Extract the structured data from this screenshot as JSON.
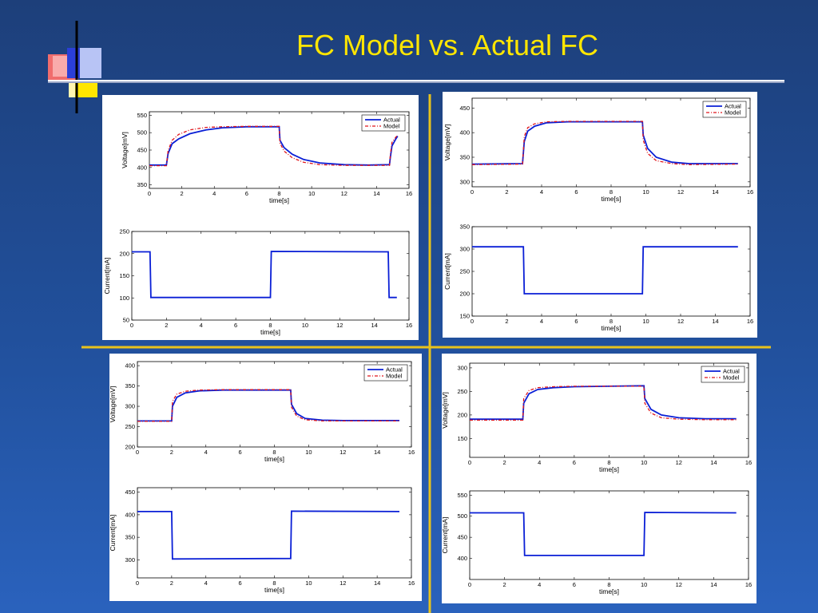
{
  "slide": {
    "title": "FC Model vs. Actual FC"
  },
  "colors": {
    "background": "#21509c",
    "title": "#ffe600",
    "divider_gold": "#e8c21c",
    "rule_white": "#ffffff",
    "actual": "#0a1fd6",
    "model": "#e0151b"
  },
  "legend": {
    "actual": "Actual",
    "model": "Model"
  },
  "chart_data": [
    {
      "id": "tl-voltage",
      "type": "line",
      "xlabel": "time[s]",
      "ylabel": "Voltage[mV]",
      "xlim": [
        0,
        16
      ],
      "ylim": [
        340,
        560
      ],
      "xticks": [
        0,
        2,
        4,
        6,
        8,
        10,
        12,
        14,
        16
      ],
      "yticks": [
        350,
        400,
        450,
        500,
        550
      ],
      "legend": "top-right",
      "grid": false,
      "series": [
        {
          "name": "Actual",
          "points": [
            [
              0,
              407
            ],
            [
              1.05,
              407
            ],
            [
              1.15,
              440
            ],
            [
              1.4,
              468
            ],
            [
              1.8,
              482
            ],
            [
              2.5,
              497
            ],
            [
              3.5,
              508
            ],
            [
              4.5,
              514
            ],
            [
              6,
              517
            ],
            [
              8,
              517
            ],
            [
              8.05,
              478
            ],
            [
              8.3,
              457
            ],
            [
              8.8,
              438
            ],
            [
              9.5,
              423
            ],
            [
              10.5,
              413
            ],
            [
              12,
              408
            ],
            [
              13.5,
              407
            ],
            [
              14.8,
              408
            ],
            [
              14.85,
              428
            ],
            [
              14.95,
              462
            ],
            [
              15.2,
              483
            ],
            [
              15.3,
              490
            ]
          ]
        },
        {
          "name": "Model",
          "points": [
            [
              0,
              405
            ],
            [
              1.05,
              405
            ],
            [
              1.15,
              448
            ],
            [
              1.4,
              478
            ],
            [
              1.8,
              495
            ],
            [
              2.5,
              508
            ],
            [
              3.5,
              515
            ],
            [
              4.5,
              517
            ],
            [
              6,
              518
            ],
            [
              8,
              518
            ],
            [
              8.05,
              470
            ],
            [
              8.3,
              447
            ],
            [
              8.8,
              428
            ],
            [
              9.5,
              415
            ],
            [
              10.5,
              408
            ],
            [
              12,
              406
            ],
            [
              13.5,
              406
            ],
            [
              14.8,
              406
            ],
            [
              14.85,
              435
            ],
            [
              14.95,
              472
            ],
            [
              15.2,
              488
            ],
            [
              15.3,
              492
            ]
          ]
        }
      ]
    },
    {
      "id": "tl-current",
      "type": "line",
      "xlabel": "time[s]",
      "ylabel": "Current[mA]",
      "xlim": [
        0,
        16
      ],
      "ylim": [
        50,
        250
      ],
      "xticks": [
        0,
        2,
        4,
        6,
        8,
        10,
        12,
        14,
        16
      ],
      "yticks": [
        50,
        100,
        150,
        200,
        250
      ],
      "grid": false,
      "series": [
        {
          "name": "Actual",
          "points": [
            [
              0,
              204
            ],
            [
              1.05,
              204
            ],
            [
              1.1,
              101
            ],
            [
              8,
              101
            ],
            [
              8.05,
              205
            ],
            [
              14.8,
              204
            ],
            [
              14.85,
              101
            ],
            [
              15.3,
              101
            ]
          ]
        }
      ]
    },
    {
      "id": "tr-voltage",
      "type": "line",
      "xlabel": "time[s]",
      "ylabel": "Voltage[mV]",
      "xlim": [
        0,
        16
      ],
      "ylim": [
        290,
        470
      ],
      "xticks": [
        0,
        2,
        4,
        6,
        8,
        10,
        12,
        14,
        16
      ],
      "yticks": [
        300,
        350,
        400,
        450
      ],
      "legend": "top-right",
      "grid": false,
      "series": [
        {
          "name": "Actual",
          "points": [
            [
              0,
              336
            ],
            [
              2.9,
              337
            ],
            [
              3,
              382
            ],
            [
              3.2,
              403
            ],
            [
              3.6,
              413
            ],
            [
              4.3,
              420
            ],
            [
              5.5,
              422
            ],
            [
              9.8,
              422
            ],
            [
              9.85,
              395
            ],
            [
              10.1,
              368
            ],
            [
              10.6,
              350
            ],
            [
              11.5,
              340
            ],
            [
              12.5,
              337
            ],
            [
              15.3,
              337
            ]
          ]
        },
        {
          "name": "Model",
          "points": [
            [
              0,
              335
            ],
            [
              2.9,
              336
            ],
            [
              3,
              392
            ],
            [
              3.2,
              410
            ],
            [
              3.6,
              418
            ],
            [
              4.3,
              422
            ],
            [
              5.5,
              423
            ],
            [
              9.8,
              423
            ],
            [
              9.85,
              385
            ],
            [
              10.1,
              358
            ],
            [
              10.6,
              343
            ],
            [
              11.5,
              337
            ],
            [
              12.5,
              335
            ],
            [
              15.3,
              336
            ]
          ]
        }
      ]
    },
    {
      "id": "tr-current",
      "type": "line",
      "xlabel": "time[s]",
      "ylabel": "Current[mA]",
      "xlim": [
        0,
        16
      ],
      "ylim": [
        150,
        350
      ],
      "xticks": [
        0,
        2,
        4,
        6,
        8,
        10,
        12,
        14,
        16
      ],
      "yticks": [
        150,
        200,
        250,
        300,
        350
      ],
      "grid": false,
      "series": [
        {
          "name": "Actual",
          "points": [
            [
              0,
              305
            ],
            [
              2.95,
              305
            ],
            [
              3,
              200
            ],
            [
              9.8,
              200
            ],
            [
              9.85,
              305
            ],
            [
              15.3,
              305
            ]
          ]
        }
      ]
    },
    {
      "id": "bl-voltage",
      "type": "line",
      "xlabel": "time[s]",
      "ylabel": "Voltage[mV]",
      "xlim": [
        0,
        16
      ],
      "ylim": [
        200,
        410
      ],
      "xticks": [
        0,
        2,
        4,
        6,
        8,
        10,
        12,
        14,
        16
      ],
      "yticks": [
        200,
        250,
        300,
        350,
        400
      ],
      "legend": "top-right",
      "grid": false,
      "series": [
        {
          "name": "Actual",
          "points": [
            [
              0,
              264
            ],
            [
              2,
              264
            ],
            [
              2.05,
              300
            ],
            [
              2.3,
              322
            ],
            [
              2.8,
              333
            ],
            [
              3.6,
              338
            ],
            [
              5,
              340
            ],
            [
              8.95,
              340
            ],
            [
              9,
              305
            ],
            [
              9.3,
              282
            ],
            [
              9.8,
              270
            ],
            [
              10.8,
              266
            ],
            [
              12,
              265
            ],
            [
              15.3,
              265
            ]
          ]
        },
        {
          "name": "Model",
          "points": [
            [
              0,
              263
            ],
            [
              2,
              263
            ],
            [
              2.05,
              312
            ],
            [
              2.3,
              330
            ],
            [
              2.8,
              337
            ],
            [
              3.6,
              340
            ],
            [
              5,
              341
            ],
            [
              8.95,
              341
            ],
            [
              9,
              298
            ],
            [
              9.3,
              276
            ],
            [
              9.8,
              267
            ],
            [
              10.8,
              264
            ],
            [
              12,
              264
            ],
            [
              15.3,
              264
            ]
          ]
        }
      ]
    },
    {
      "id": "bl-current",
      "type": "line",
      "xlabel": "time[s]",
      "ylabel": "Current[mA]",
      "xlim": [
        0,
        16
      ],
      "ylim": [
        260,
        460
      ],
      "xticks": [
        0,
        2,
        4,
        6,
        8,
        10,
        12,
        14,
        16
      ],
      "yticks": [
        300,
        350,
        400,
        450
      ],
      "grid": false,
      "series": [
        {
          "name": "Actual",
          "points": [
            [
              0,
              407
            ],
            [
              2,
              407
            ],
            [
              2.05,
              302
            ],
            [
              8.95,
              303
            ],
            [
              9,
              408
            ],
            [
              15.3,
              407
            ]
          ]
        }
      ]
    },
    {
      "id": "br-voltage",
      "type": "line",
      "xlabel": "time[s]",
      "ylabel": "Voltage[mV]",
      "xlim": [
        0,
        16
      ],
      "ylim": [
        110,
        310
      ],
      "xticks": [
        0,
        2,
        4,
        6,
        8,
        10,
        12,
        14,
        16
      ],
      "yticks": [
        150,
        200,
        250,
        300
      ],
      "legend": "top-right",
      "grid": false,
      "series": [
        {
          "name": "Actual",
          "points": [
            [
              0,
              191
            ],
            [
              3.05,
              191
            ],
            [
              3.1,
              225
            ],
            [
              3.4,
              245
            ],
            [
              3.9,
              254
            ],
            [
              4.8,
              258
            ],
            [
              6,
              260
            ],
            [
              10,
              262
            ],
            [
              10.05,
              235
            ],
            [
              10.4,
              212
            ],
            [
              11,
              200
            ],
            [
              12,
              194
            ],
            [
              13.5,
              192
            ],
            [
              15.3,
              192
            ]
          ]
        },
        {
          "name": "Model",
          "points": [
            [
              0,
              189
            ],
            [
              3.05,
              189
            ],
            [
              3.1,
              235
            ],
            [
              3.4,
              252
            ],
            [
              3.9,
              258
            ],
            [
              4.8,
              260
            ],
            [
              6,
              261
            ],
            [
              10,
              261
            ],
            [
              10.05,
              225
            ],
            [
              10.4,
              204
            ],
            [
              11,
              194
            ],
            [
              12,
              191
            ],
            [
              13.5,
              190
            ],
            [
              15.3,
              190
            ]
          ]
        }
      ]
    },
    {
      "id": "br-current",
      "type": "line",
      "xlabel": "time[s]",
      "ylabel": "Current[mA]",
      "xlim": [
        0,
        16
      ],
      "ylim": [
        350,
        560
      ],
      "xticks": [
        0,
        2,
        4,
        6,
        8,
        10,
        12,
        14,
        16
      ],
      "yticks": [
        400,
        450,
        500,
        550
      ],
      "grid": false,
      "series": [
        {
          "name": "Actual",
          "points": [
            [
              0,
              508
            ],
            [
              3.1,
              508
            ],
            [
              3.15,
              407
            ],
            [
              10,
              407
            ],
            [
              10.05,
              509
            ],
            [
              15.3,
              508
            ]
          ]
        }
      ]
    }
  ]
}
